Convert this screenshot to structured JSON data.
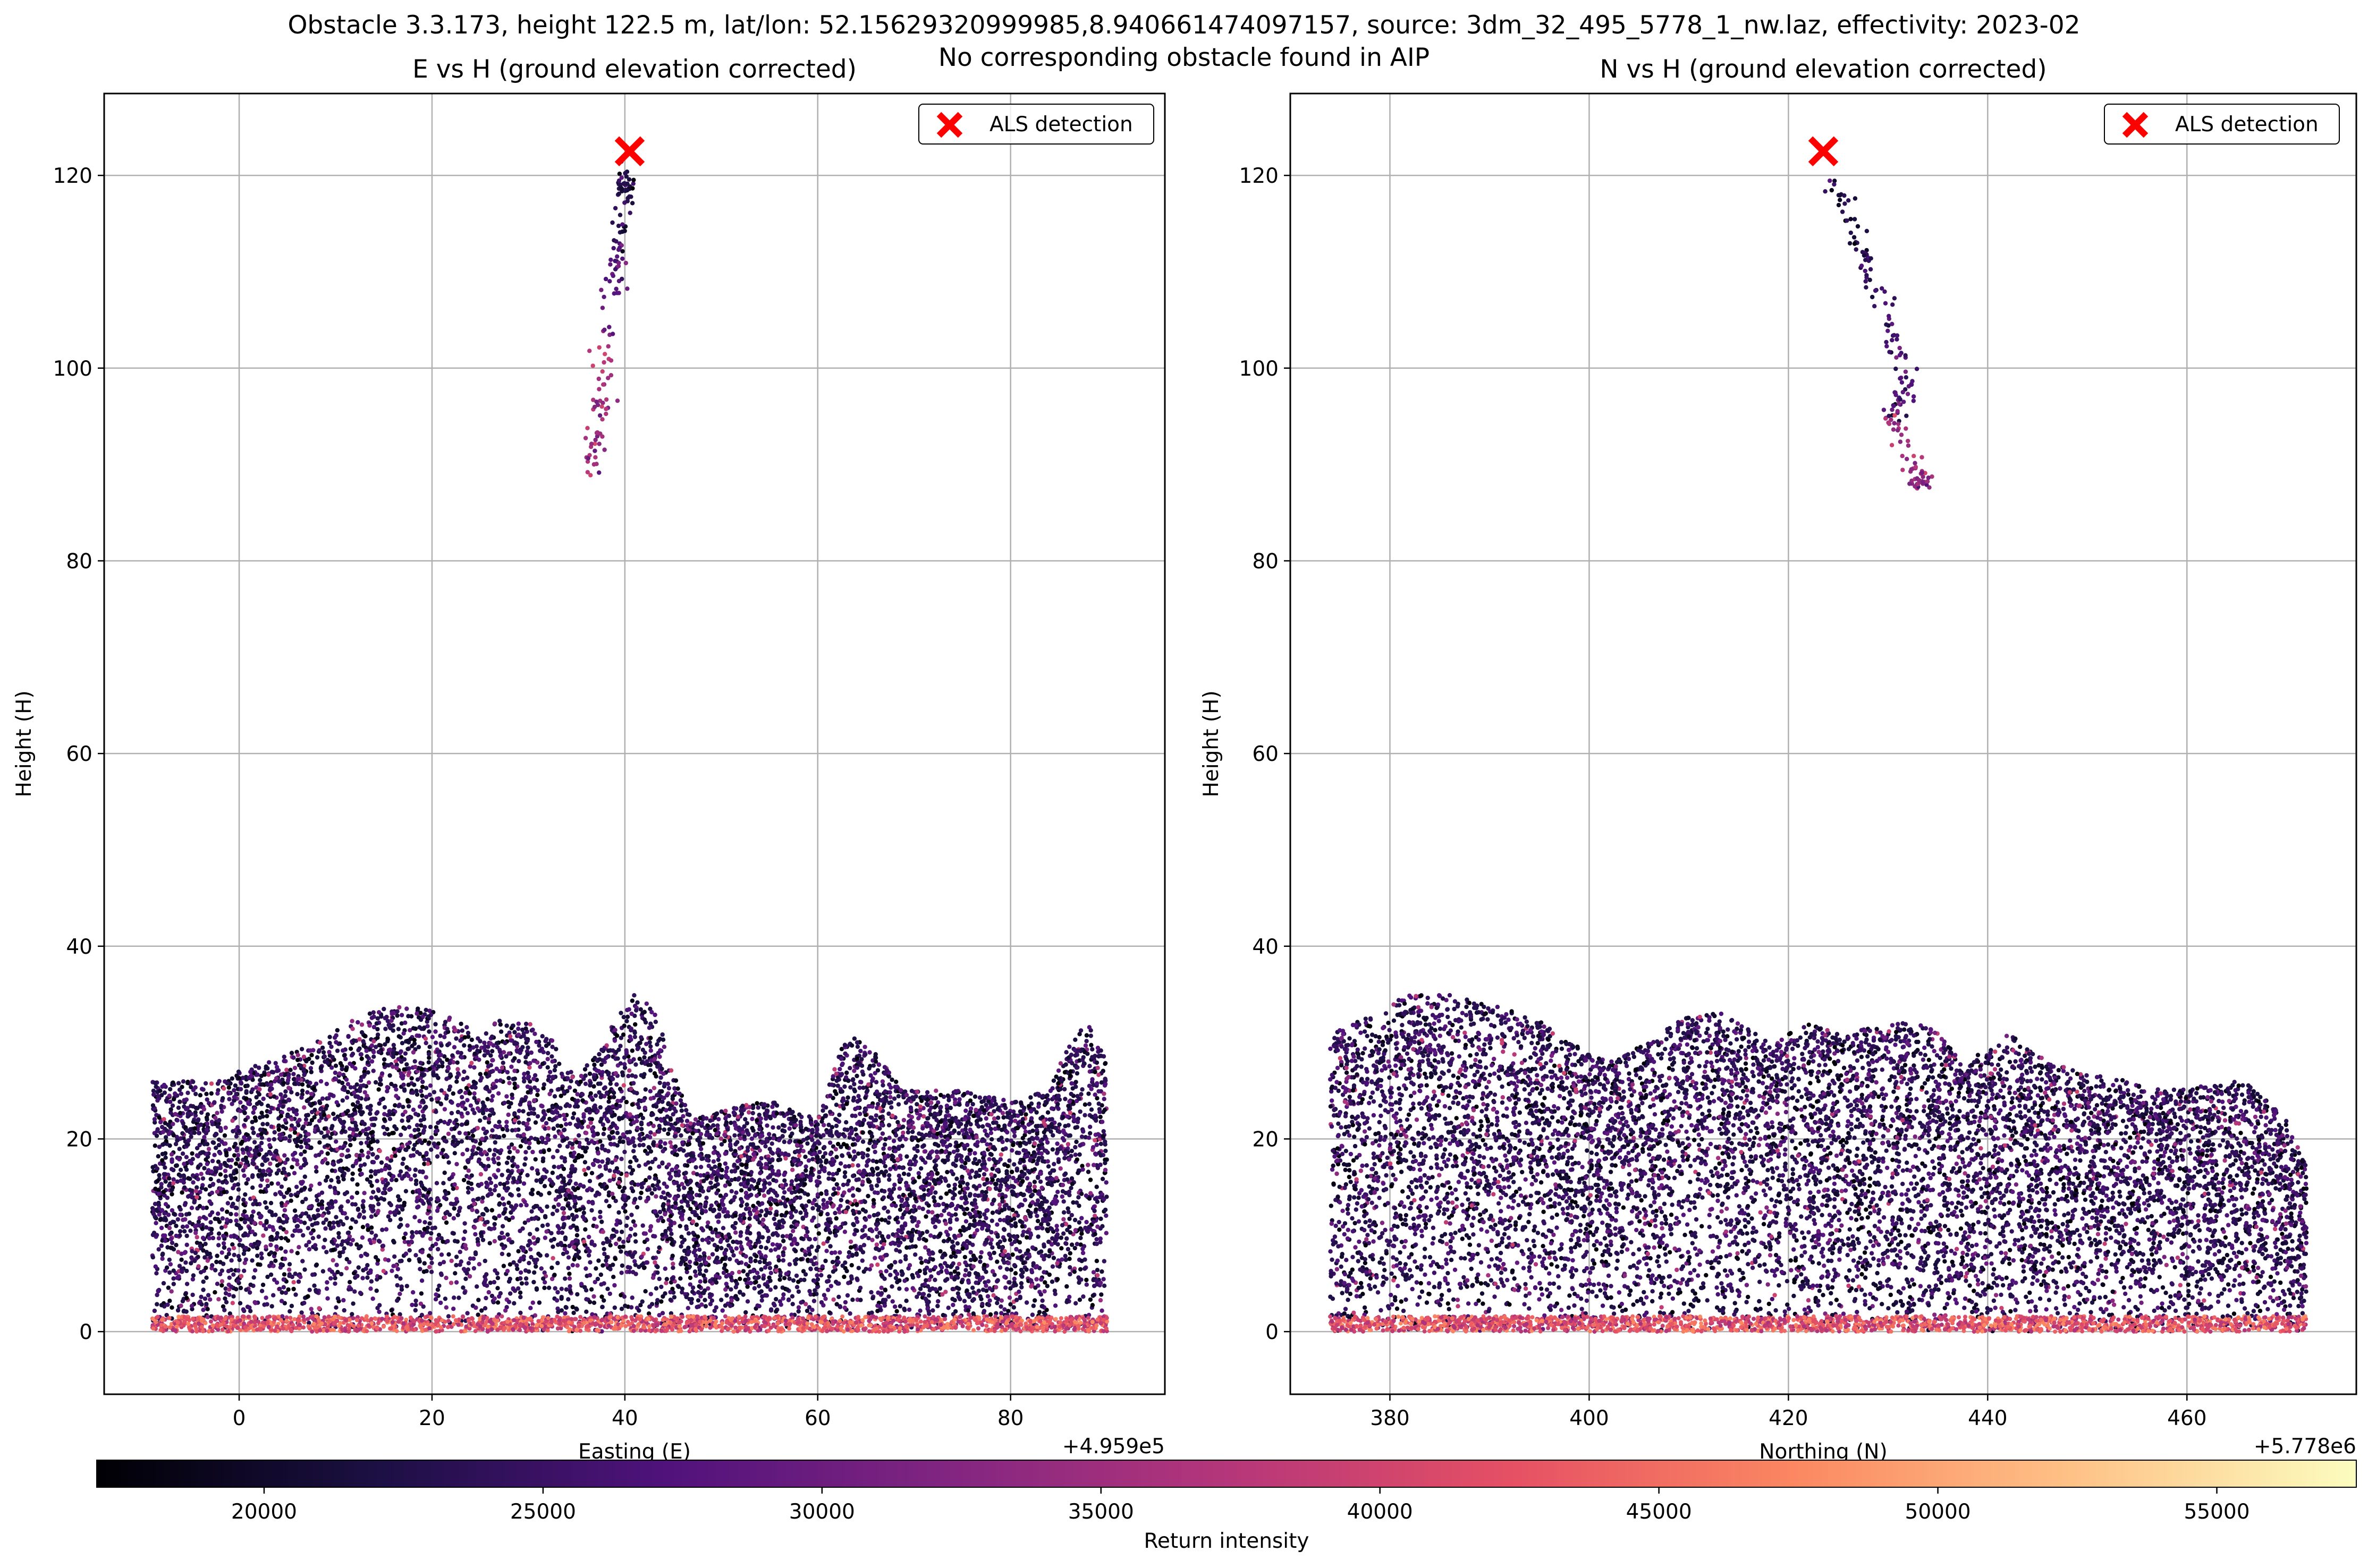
{
  "suptitle_line1": "Obstacle 3.3.173, height 122.5 m, lat/lon: 52.15629320999985,8.940661474097157, source: 3dm_32_495_5778_1_nw.laz, effectivity: 2023-02",
  "suptitle_line2": "No corresponding obstacle found in AIP",
  "colorbar": {
    "label": "Return intensity",
    "range": [
      17000,
      57500
    ],
    "ticks": [
      20000,
      25000,
      30000,
      35000,
      40000,
      45000,
      50000,
      55000
    ],
    "tick_labels": [
      "20000",
      "25000",
      "30000",
      "35000",
      "40000",
      "45000",
      "50000",
      "55000"
    ],
    "colormap": "magma"
  },
  "colors": {
    "detection_marker": "#ff0000",
    "grid": "#b0b0b0"
  },
  "chart_data": [
    {
      "type": "scatter",
      "title": "E vs H (ground elevation corrected)",
      "xlabel": "Easting (E)",
      "ylabel": "Height (H)",
      "x_offset_label": "+4.959e5",
      "xlim": [
        -14,
        96
      ],
      "ylim": [
        -6.5,
        128.5
      ],
      "xticks": [
        0,
        20,
        40,
        60,
        80
      ],
      "xtick_labels": [
        "0",
        "20",
        "40",
        "60",
        "80"
      ],
      "yticks": [
        0,
        20,
        40,
        60,
        80,
        100,
        120
      ],
      "ytick_labels": [
        "0",
        "20",
        "40",
        "60",
        "80",
        "100",
        "120"
      ],
      "grid": true,
      "legend": {
        "label": "ALS detection",
        "position": "top-right"
      },
      "detection": {
        "x": 40.5,
        "y": 122.5
      },
      "point_count_note": "dense vegetation point cloud",
      "canopy_profile": [
        [
          -9,
          26
        ],
        [
          -3,
          26
        ],
        [
          3,
          28
        ],
        [
          8,
          30
        ],
        [
          13,
          33
        ],
        [
          17,
          34
        ],
        [
          21,
          33
        ],
        [
          25,
          31
        ],
        [
          28,
          33
        ],
        [
          32,
          31
        ],
        [
          35,
          26
        ],
        [
          38,
          31
        ],
        [
          41,
          35
        ],
        [
          43,
          34
        ],
        [
          45,
          27
        ],
        [
          47,
          22
        ],
        [
          50,
          23
        ],
        [
          55,
          24
        ],
        [
          60,
          22
        ],
        [
          63,
          31
        ],
        [
          66,
          29
        ],
        [
          69,
          25
        ],
        [
          75,
          25
        ],
        [
          80,
          24
        ],
        [
          84,
          25
        ],
        [
          86,
          30
        ],
        [
          88,
          32
        ],
        [
          90,
          28
        ]
      ],
      "canopy_x_range": [
        -9,
        90
      ],
      "upper_structure": [
        {
          "x": 36.5,
          "y": 88.5,
          "intensity": 34000
        },
        {
          "x": 37.5,
          "y": 95.0,
          "intensity": 36000
        },
        {
          "x": 38.0,
          "y": 104.0,
          "intensity": 28000
        },
        {
          "x": 39.2,
          "y": 112.0,
          "intensity": 24000
        },
        {
          "x": 40.0,
          "y": 119.0,
          "intensity": 22000
        }
      ]
    },
    {
      "type": "scatter",
      "title": "N vs H (ground elevation corrected)",
      "xlabel": "Northing (N)",
      "ylabel": "Height (H)",
      "x_offset_label": "+5.778e6",
      "xlim": [
        370,
        477
      ],
      "ylim": [
        -6.5,
        128.5
      ],
      "xticks": [
        380,
        400,
        420,
        440,
        460
      ],
      "xtick_labels": [
        "380",
        "400",
        "420",
        "440",
        "460"
      ],
      "yticks": [
        0,
        20,
        40,
        60,
        80,
        100,
        120
      ],
      "ytick_labels": [
        "0",
        "20",
        "40",
        "60",
        "80",
        "100",
        "120"
      ],
      "grid": true,
      "legend": {
        "label": "ALS detection",
        "position": "top-right"
      },
      "detection": {
        "x": 423.5,
        "y": 122.5
      },
      "canopy_profile": [
        [
          374,
          31
        ],
        [
          378,
          33
        ],
        [
          382,
          35
        ],
        [
          386,
          35
        ],
        [
          390,
          34
        ],
        [
          394,
          33
        ],
        [
          398,
          30
        ],
        [
          402,
          28
        ],
        [
          406,
          30
        ],
        [
          410,
          33
        ],
        [
          414,
          33
        ],
        [
          418,
          30
        ],
        [
          422,
          32
        ],
        [
          426,
          31
        ],
        [
          430,
          32
        ],
        [
          434,
          32
        ],
        [
          438,
          28
        ],
        [
          442,
          31
        ],
        [
          446,
          28
        ],
        [
          450,
          27
        ],
        [
          454,
          26
        ],
        [
          458,
          25
        ],
        [
          462,
          26
        ],
        [
          466,
          26
        ],
        [
          470,
          22
        ],
        [
          472,
          18
        ]
      ],
      "canopy_x_range": [
        374,
        472
      ],
      "upper_structure": [
        {
          "x": 424.5,
          "y": 119.0,
          "intensity": 22000
        },
        {
          "x": 427.0,
          "y": 113.0,
          "intensity": 24000
        },
        {
          "x": 429.5,
          "y": 106.0,
          "intensity": 26000
        },
        {
          "x": 432.0,
          "y": 98.0,
          "intensity": 28000
        },
        {
          "x": 430.0,
          "y": 95.0,
          "intensity": 36000
        },
        {
          "x": 433.0,
          "y": 88.5,
          "intensity": 33000
        }
      ]
    }
  ]
}
